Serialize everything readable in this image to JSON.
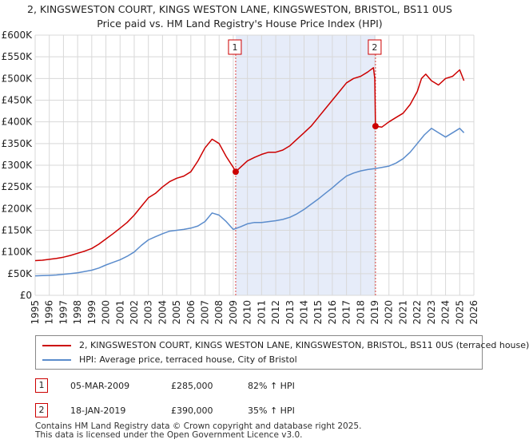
{
  "chart_data": {
    "type": "line",
    "title": "2, KINGSWESTON COURT, KINGS WESTON LANE, KINGSWESTON, BRISTOL, BS11 0US",
    "subtitle": "Price paid vs. HM Land Registry's House Price Index (HPI)",
    "xlabel": "",
    "ylabel": "",
    "xlim": [
      1995,
      2026
    ],
    "ylim": [
      0,
      600000
    ],
    "x_ticks": [
      "1995",
      "1996",
      "1997",
      "1998",
      "1999",
      "2000",
      "2001",
      "2002",
      "2003",
      "2004",
      "2005",
      "2006",
      "2007",
      "2008",
      "2009",
      "2010",
      "2011",
      "2012",
      "2013",
      "2014",
      "2015",
      "2016",
      "2017",
      "2018",
      "2019",
      "2020",
      "2021",
      "2022",
      "2023",
      "2024",
      "2025",
      "2026"
    ],
    "y_ticks": [
      {
        "value": 0,
        "label": "£0"
      },
      {
        "value": 50000,
        "label": "£50K"
      },
      {
        "value": 100000,
        "label": "£100K"
      },
      {
        "value": 150000,
        "label": "£150K"
      },
      {
        "value": 200000,
        "label": "£200K"
      },
      {
        "value": 250000,
        "label": "£250K"
      },
      {
        "value": 300000,
        "label": "£300K"
      },
      {
        "value": 350000,
        "label": "£350K"
      },
      {
        "value": 400000,
        "label": "£400K"
      },
      {
        "value": 450000,
        "label": "£450K"
      },
      {
        "value": 500000,
        "label": "£500K"
      },
      {
        "value": 550000,
        "label": "£550K"
      },
      {
        "value": 600000,
        "label": "£600K"
      }
    ],
    "grid": true,
    "shaded_period": [
      2009.17,
      2019.05
    ],
    "series": [
      {
        "name": "2, KINGSWESTON COURT, KINGS WESTON LANE, KINGSWESTON, BRISTOL, BS11 0US (terraced house)",
        "color": "#cc0000",
        "x": [
          1995.0,
          1995.5,
          1996.0,
          1996.5,
          1997.0,
          1997.5,
          1998.0,
          1998.5,
          1999.0,
          1999.5,
          2000.0,
          2000.5,
          2001.0,
          2001.5,
          2002.0,
          2002.5,
          2003.0,
          2003.5,
          2004.0,
          2004.5,
          2005.0,
          2005.5,
          2006.0,
          2006.5,
          2007.0,
          2007.5,
          2008.0,
          2008.5,
          2009.0,
          2009.17,
          2009.5,
          2010.0,
          2010.5,
          2011.0,
          2011.5,
          2012.0,
          2012.5,
          2013.0,
          2013.5,
          2014.0,
          2014.5,
          2015.0,
          2015.5,
          2016.0,
          2016.5,
          2017.0,
          2017.5,
          2018.0,
          2018.5,
          2018.9,
          2019.0,
          2019.05,
          2019.5,
          2020.0,
          2020.5,
          2021.0,
          2021.5,
          2022.0,
          2022.3,
          2022.6,
          2023.0,
          2023.5,
          2024.0,
          2024.5,
          2025.0,
          2025.3
        ],
        "values": [
          80000,
          81000,
          83000,
          85000,
          88000,
          92000,
          97000,
          102000,
          108000,
          118000,
          130000,
          142000,
          155000,
          168000,
          185000,
          205000,
          225000,
          235000,
          250000,
          262000,
          270000,
          275000,
          285000,
          310000,
          340000,
          360000,
          350000,
          320000,
          295000,
          285000,
          295000,
          310000,
          318000,
          325000,
          330000,
          330000,
          335000,
          345000,
          360000,
          375000,
          390000,
          410000,
          430000,
          450000,
          470000,
          490000,
          500000,
          505000,
          515000,
          525000,
          500000,
          390000,
          388000,
          400000,
          410000,
          420000,
          440000,
          470000,
          500000,
          510000,
          495000,
          485000,
          500000,
          505000,
          520000,
          495000
        ]
      },
      {
        "name": "HPI: Average price, terraced house, City of Bristol",
        "color": "#5b8ccc",
        "x": [
          1995.0,
          1995.5,
          1996.0,
          1996.5,
          1997.0,
          1997.5,
          1998.0,
          1998.5,
          1999.0,
          1999.5,
          2000.0,
          2000.5,
          2001.0,
          2001.5,
          2002.0,
          2002.5,
          2003.0,
          2003.5,
          2004.0,
          2004.5,
          2005.0,
          2005.5,
          2006.0,
          2006.5,
          2007.0,
          2007.5,
          2008.0,
          2008.5,
          2009.0,
          2009.5,
          2010.0,
          2010.5,
          2011.0,
          2011.5,
          2012.0,
          2012.5,
          2013.0,
          2013.5,
          2014.0,
          2014.5,
          2015.0,
          2015.5,
          2016.0,
          2016.5,
          2017.0,
          2017.5,
          2018.0,
          2018.5,
          2019.0,
          2019.5,
          2020.0,
          2020.5,
          2021.0,
          2021.5,
          2022.0,
          2022.5,
          2023.0,
          2023.5,
          2024.0,
          2024.5,
          2025.0,
          2025.3
        ],
        "values": [
          45000,
          45500,
          46000,
          47000,
          48500,
          50000,
          52000,
          55000,
          58000,
          63000,
          70000,
          76000,
          82000,
          90000,
          100000,
          115000,
          128000,
          135000,
          142000,
          148000,
          150000,
          152000,
          155000,
          160000,
          170000,
          190000,
          185000,
          170000,
          152000,
          158000,
          165000,
          168000,
          168000,
          170000,
          172000,
          175000,
          180000,
          188000,
          198000,
          210000,
          222000,
          235000,
          248000,
          262000,
          275000,
          282000,
          287000,
          290000,
          292000,
          295000,
          298000,
          305000,
          315000,
          330000,
          350000,
          370000,
          385000,
          375000,
          365000,
          375000,
          385000,
          375000
        ]
      }
    ],
    "annotations": [
      {
        "label": "1",
        "x": 2009.17,
        "y": 285000
      },
      {
        "label": "2",
        "x": 2019.05,
        "y": 390000
      }
    ]
  },
  "legend": {
    "items": [
      {
        "label": "2, KINGSWESTON COURT, KINGS WESTON LANE, KINGSWESTON, BRISTOL, BS11 0US (terraced house)",
        "color": "#cc0000"
      },
      {
        "label": "HPI: Average price, terraced house, City of Bristol",
        "color": "#5b8ccc"
      }
    ]
  },
  "sales": [
    {
      "num": "1",
      "date": "05-MAR-2009",
      "price": "£285,000",
      "hpi": "82% ↑ HPI"
    },
    {
      "num": "2",
      "date": "18-JAN-2019",
      "price": "£390,000",
      "hpi": "35% ↑ HPI"
    }
  ],
  "footer": {
    "line1": "Contains HM Land Registry data © Crown copyright and database right 2025.",
    "line2": "This data is licensed under the Open Government Licence v3.0."
  }
}
